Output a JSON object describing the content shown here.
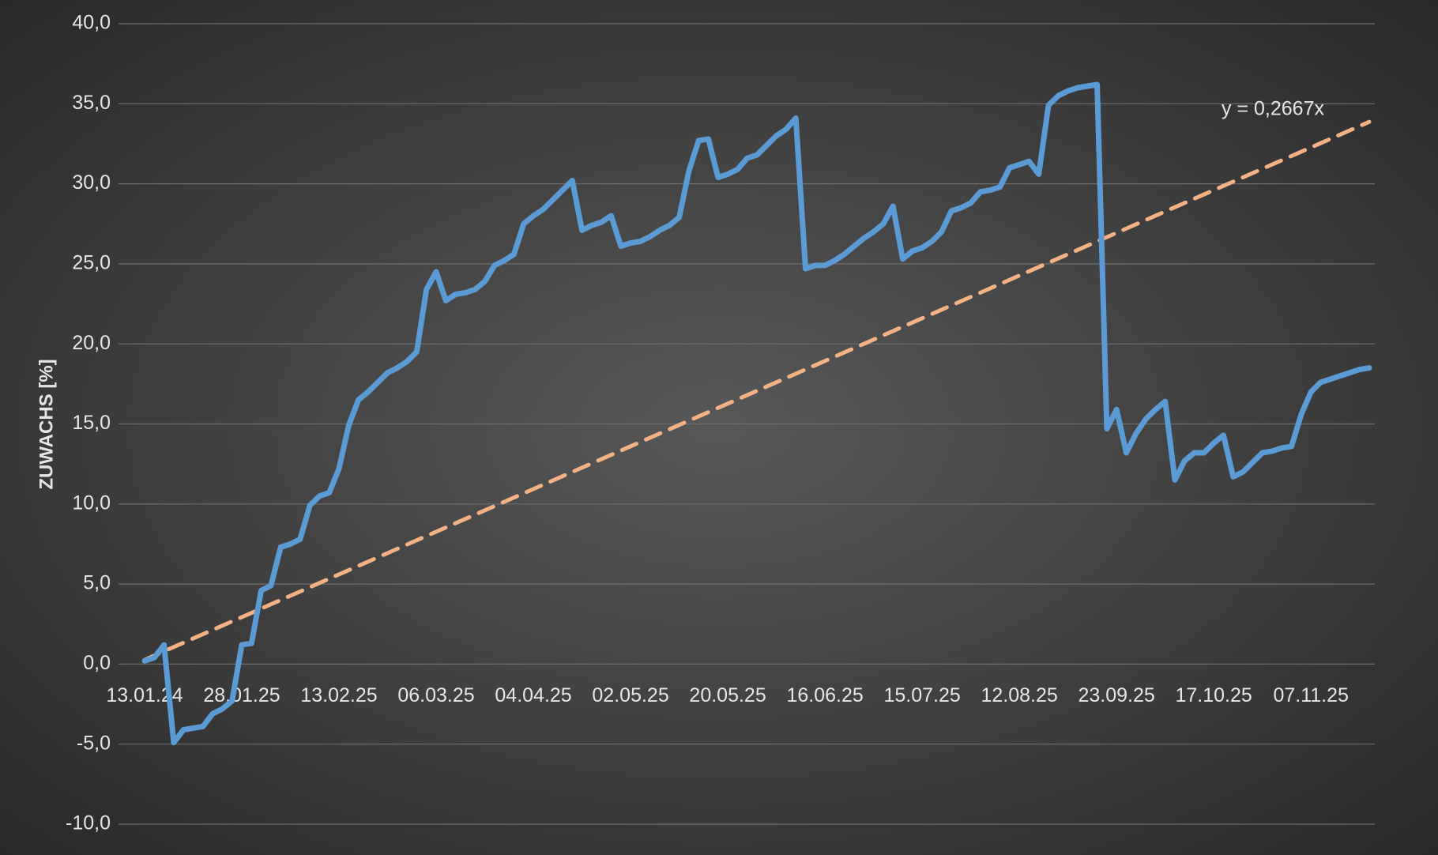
{
  "chart_data": {
    "type": "line",
    "y_label": "ZUWACHS [%]",
    "categories": [
      "13.01.24",
      null,
      null,
      null,
      null,
      null,
      null,
      null,
      null,
      null,
      "28.01.25",
      null,
      null,
      null,
      null,
      null,
      null,
      null,
      null,
      null,
      "13.02.25",
      null,
      null,
      null,
      null,
      null,
      null,
      null,
      null,
      null,
      "06.03.25",
      null,
      null,
      null,
      null,
      null,
      null,
      null,
      null,
      null,
      "04.04.25",
      null,
      null,
      null,
      null,
      null,
      null,
      null,
      null,
      null,
      "02.05.25",
      null,
      null,
      null,
      null,
      null,
      null,
      null,
      null,
      null,
      "20.05.25",
      null,
      null,
      null,
      null,
      null,
      null,
      null,
      null,
      null,
      "16.06.25",
      null,
      null,
      null,
      null,
      null,
      null,
      null,
      null,
      null,
      "15.07.25",
      null,
      null,
      null,
      null,
      null,
      null,
      null,
      null,
      null,
      "12.08.25",
      null,
      null,
      null,
      null,
      null,
      null,
      null,
      null,
      null,
      "23.09.25",
      null,
      null,
      null,
      null,
      null,
      null,
      null,
      null,
      null,
      "17.10.25",
      null,
      null,
      null,
      null,
      null,
      null,
      null,
      null,
      null,
      "07.11.25",
      null,
      null,
      null,
      null,
      null,
      null
    ],
    "series": [
      {
        "color": "#5b9bd5",
        "values": [
          0.2,
          0.4,
          1.2,
          -4.9,
          -4.1,
          -4.0,
          -3.9,
          -3.1,
          -2.8,
          -2.3,
          1.2,
          1.3,
          4.6,
          4.9,
          7.3,
          7.5,
          7.8,
          9.9,
          10.5,
          10.7,
          12.2,
          14.9,
          16.5,
          17.0,
          17.6,
          18.2,
          18.5,
          18.9,
          19.5,
          23.4,
          24.5,
          22.7,
          23.1,
          23.2,
          23.4,
          23.9,
          24.9,
          25.2,
          25.6,
          27.5,
          28.0,
          28.4,
          29.0,
          29.6,
          30.2,
          27.1,
          27.4,
          27.6,
          28.0,
          26.1,
          26.3,
          26.4,
          26.7,
          27.1,
          27.4,
          27.9,
          30.8,
          32.7,
          32.8,
          30.4,
          30.6,
          30.9,
          31.6,
          31.8,
          32.4,
          33.0,
          33.4,
          34.1,
          24.7,
          24.9,
          24.9,
          25.2,
          25.6,
          26.1,
          26.6,
          27.0,
          27.5,
          28.6,
          25.3,
          25.8,
          26.0,
          26.4,
          27.0,
          28.3,
          28.5,
          28.8,
          29.5,
          29.6,
          29.8,
          31.0,
          31.2,
          31.4,
          30.6,
          34.9,
          35.5,
          35.8,
          36.0,
          36.1,
          36.2,
          14.7,
          15.9,
          13.2,
          14.4,
          15.3,
          15.9,
          16.4,
          11.5,
          12.7,
          13.2,
          13.2,
          13.8,
          14.3,
          11.7,
          12.0,
          12.6,
          13.2,
          13.3,
          13.5,
          13.6,
          15.6,
          17.0,
          17.6,
          17.8,
          18.0,
          18.2,
          18.4,
          18.5
        ]
      }
    ],
    "trendline": {
      "slope": 0.2667,
      "label": "y = 0,2667x",
      "color": "#f4b183"
    },
    "ylim": [
      -10,
      40
    ],
    "yticks": [
      {
        "value": -10,
        "label": "-10,0"
      },
      {
        "value": -5,
        "label": "-5,0"
      },
      {
        "value": 0,
        "label": "0,0"
      },
      {
        "value": 5,
        "label": "5,0"
      },
      {
        "value": 10,
        "label": "10,0"
      },
      {
        "value": 15,
        "label": "15,0"
      },
      {
        "value": 20,
        "label": "20,0"
      },
      {
        "value": 25,
        "label": "25,0"
      },
      {
        "value": 30,
        "label": "30,0"
      },
      {
        "value": 35,
        "label": "35,0"
      },
      {
        "value": 40,
        "label": "40,0"
      }
    ],
    "grid": true
  }
}
